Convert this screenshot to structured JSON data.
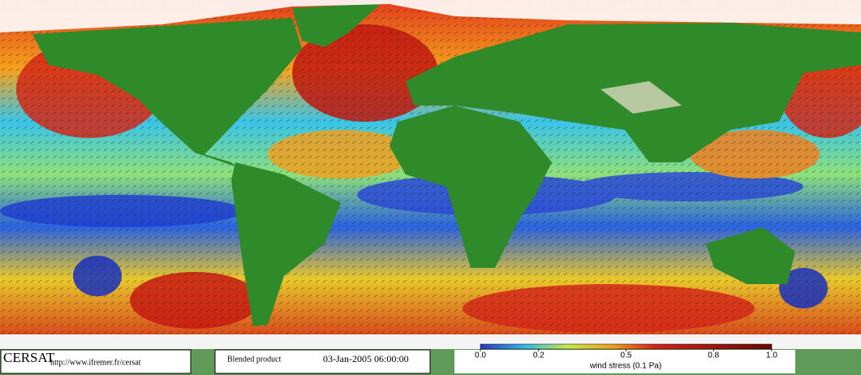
{
  "footer": {
    "logo": "CERSAT",
    "url": "http://www.ifremer.fr/cersat",
    "product": "Blended product",
    "timestamp": "03-Jan-2005 06:00:00"
  },
  "colorbar": {
    "label": "wind stress (0.1 Pa)",
    "lim": [
      0,
      1
    ],
    "ticks": [
      {
        "value": 0,
        "label": "0.0"
      },
      0.2,
      0.5,
      0.8,
      {
        "value": 1,
        "label": "1.0"
      }
    ]
  }
}
